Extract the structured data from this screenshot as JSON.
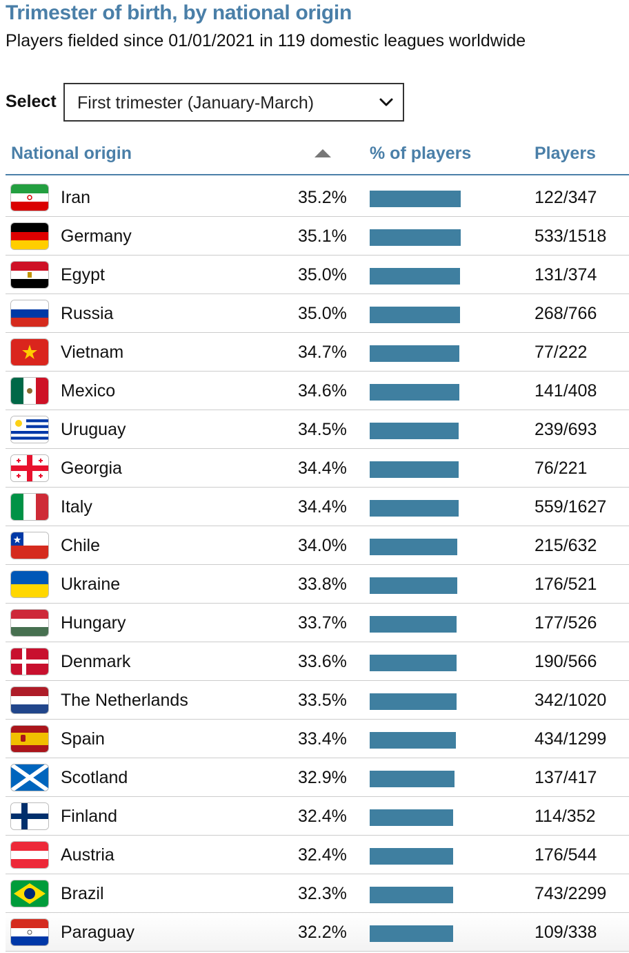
{
  "header": {
    "title": "Trimester of birth, by national origin",
    "subtitle": "Players fielded since 01/01/2021 in 119 domestic leagues worldwide"
  },
  "filter": {
    "label": "Select",
    "selected": "First trimester (January-March)"
  },
  "columns": {
    "origin": "National origin",
    "percent": "% of players",
    "players": "Players"
  },
  "colors": {
    "accent": "#4a7fa8",
    "bar": "#3f7fa0"
  },
  "rows": [
    {
      "country": "Iran",
      "flag": "iran-flag",
      "percent_label": "35.2%",
      "percent": 35.2,
      "players": "122/347"
    },
    {
      "country": "Germany",
      "flag": "germany-flag",
      "percent_label": "35.1%",
      "percent": 35.1,
      "players": "533/1518"
    },
    {
      "country": "Egypt",
      "flag": "egypt-flag",
      "percent_label": "35.0%",
      "percent": 35.0,
      "players": "131/374"
    },
    {
      "country": "Russia",
      "flag": "russia-flag",
      "percent_label": "35.0%",
      "percent": 35.0,
      "players": "268/766"
    },
    {
      "country": "Vietnam",
      "flag": "vietnam-flag",
      "percent_label": "34.7%",
      "percent": 34.7,
      "players": "77/222"
    },
    {
      "country": "Mexico",
      "flag": "mexico-flag",
      "percent_label": "34.6%",
      "percent": 34.6,
      "players": "141/408"
    },
    {
      "country": "Uruguay",
      "flag": "uruguay-flag",
      "percent_label": "34.5%",
      "percent": 34.5,
      "players": "239/693"
    },
    {
      "country": "Georgia",
      "flag": "georgia-flag",
      "percent_label": "34.4%",
      "percent": 34.4,
      "players": "76/221"
    },
    {
      "country": "Italy",
      "flag": "italy-flag",
      "percent_label": "34.4%",
      "percent": 34.4,
      "players": "559/1627"
    },
    {
      "country": "Chile",
      "flag": "chile-flag",
      "percent_label": "34.0%",
      "percent": 34.0,
      "players": "215/632"
    },
    {
      "country": "Ukraine",
      "flag": "ukraine-flag",
      "percent_label": "33.8%",
      "percent": 33.8,
      "players": "176/521"
    },
    {
      "country": "Hungary",
      "flag": "hungary-flag",
      "percent_label": "33.7%",
      "percent": 33.7,
      "players": "177/526"
    },
    {
      "country": "Denmark",
      "flag": "denmark-flag",
      "percent_label": "33.6%",
      "percent": 33.6,
      "players": "190/566"
    },
    {
      "country": "The Netherlands",
      "flag": "netherlands-flag",
      "percent_label": "33.5%",
      "percent": 33.5,
      "players": "342/1020"
    },
    {
      "country": "Spain",
      "flag": "spain-flag",
      "percent_label": "33.4%",
      "percent": 33.4,
      "players": "434/1299"
    },
    {
      "country": "Scotland",
      "flag": "scotland-flag",
      "percent_label": "32.9%",
      "percent": 32.9,
      "players": "137/417"
    },
    {
      "country": "Finland",
      "flag": "finland-flag",
      "percent_label": "32.4%",
      "percent": 32.4,
      "players": "114/352"
    },
    {
      "country": "Austria",
      "flag": "austria-flag",
      "percent_label": "32.4%",
      "percent": 32.4,
      "players": "176/544"
    },
    {
      "country": "Brazil",
      "flag": "brazil-flag",
      "percent_label": "32.3%",
      "percent": 32.3,
      "players": "743/2299"
    },
    {
      "country": "Paraguay",
      "flag": "paraguay-flag",
      "percent_label": "32.2%",
      "percent": 32.2,
      "players": "109/338"
    }
  ]
}
